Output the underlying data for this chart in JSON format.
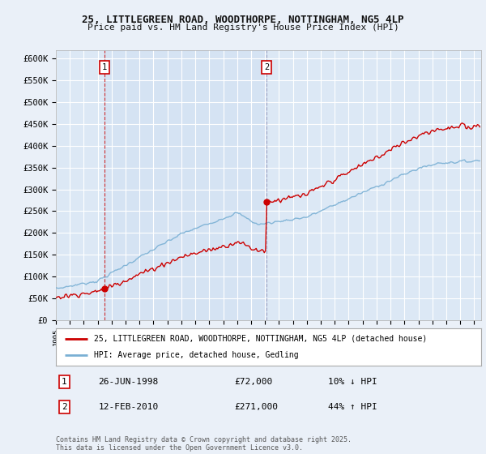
{
  "title_line1": "25, LITTLEGREEN ROAD, WOODTHORPE, NOTTINGHAM, NG5 4LP",
  "title_line2": "Price paid vs. HM Land Registry's House Price Index (HPI)",
  "ylabel_ticks": [
    "£0",
    "£50K",
    "£100K",
    "£150K",
    "£200K",
    "£250K",
    "£300K",
    "£350K",
    "£400K",
    "£450K",
    "£500K",
    "£550K",
    "£600K"
  ],
  "ytick_values": [
    0,
    50000,
    100000,
    150000,
    200000,
    250000,
    300000,
    350000,
    400000,
    450000,
    500000,
    550000,
    600000
  ],
  "ylim": [
    0,
    620000
  ],
  "xlim_start": 1995.0,
  "xlim_end": 2025.5,
  "xtick_years": [
    1995,
    1996,
    1997,
    1998,
    1999,
    2000,
    2001,
    2002,
    2003,
    2004,
    2005,
    2006,
    2007,
    2008,
    2009,
    2010,
    2011,
    2012,
    2013,
    2014,
    2015,
    2016,
    2017,
    2018,
    2019,
    2020,
    2021,
    2022,
    2023,
    2024,
    2025
  ],
  "sale1_year": 1998.48,
  "sale1_price": 72000,
  "sale1_label": "1",
  "sale1_date": "26-JUN-1998",
  "sale1_hpi_rel": "10% ↓ HPI",
  "sale2_year": 2010.11,
  "sale2_price": 271000,
  "sale2_label": "2",
  "sale2_date": "12-FEB-2010",
  "sale2_hpi_rel": "44% ↑ HPI",
  "bg_color": "#eaf0f8",
  "plot_bg": "#dce8f5",
  "shade_bg": "#cddcee",
  "red_color": "#cc0000",
  "blue_color": "#7ab0d4",
  "grid_color": "#ffffff",
  "legend_label1": "25, LITTLEGREEN ROAD, WOODTHORPE, NOTTINGHAM, NG5 4LP (detached house)",
  "legend_label2": "HPI: Average price, detached house, Gedling",
  "footnote": "Contains HM Land Registry data © Crown copyright and database right 2025.\nThis data is licensed under the Open Government Licence v3.0.",
  "sale_box_color": "#cc0000",
  "sale_box_fill": "#ffffff"
}
